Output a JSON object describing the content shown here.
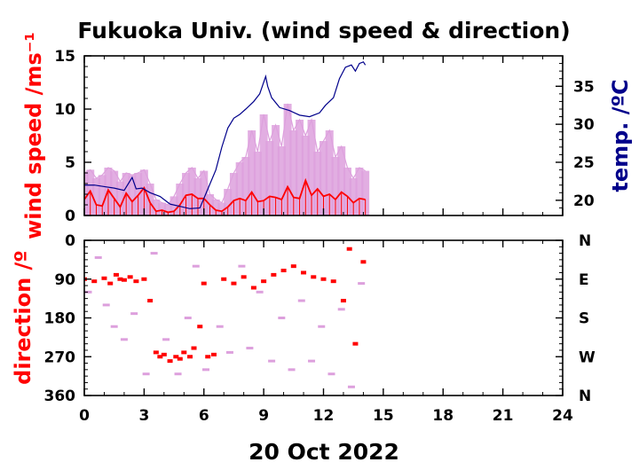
{
  "chart_data": [
    {
      "type": "line",
      "title": "Fukuoka Univ. (wind speed & direction)",
      "ylabel": "wind speed /ms⁻¹",
      "y2label": "temp. /ºC",
      "xlim": [
        0,
        24
      ],
      "ylim": [
        0,
        15
      ],
      "y2lim": [
        18,
        39
      ],
      "x_ticks": [
        "0",
        "3",
        "6",
        "9",
        "12",
        "15",
        "18",
        "21",
        "24"
      ],
      "y_ticks": [
        "0",
        "5",
        "10",
        "15"
      ],
      "y2_ticks": [
        "20",
        "25",
        "30",
        "35"
      ],
      "series": [
        {
          "color": "#ff0000",
          "role": "wind speed (mean)",
          "x": [
            0,
            0.3,
            0.6,
            0.9,
            1.2,
            1.5,
            1.8,
            2.1,
            2.4,
            2.7,
            3.0,
            3.3,
            3.6,
            3.9,
            4.2,
            4.5,
            4.8,
            5.1,
            5.4,
            5.7,
            6.0,
            6.3,
            6.6,
            6.9,
            7.2,
            7.5,
            7.8,
            8.1,
            8.4,
            8.7,
            9.0,
            9.3,
            9.6,
            9.9,
            10.2,
            10.5,
            10.8,
            11.1,
            11.4,
            11.7,
            12.0,
            12.3,
            12.6,
            12.9,
            13.2,
            13.5,
            13.8,
            14.1
          ],
          "values": [
            1.5,
            2.3,
            1.0,
            0.9,
            2.4,
            1.6,
            0.8,
            2.1,
            1.3,
            1.9,
            2.6,
            1.2,
            0.4,
            0.5,
            0.3,
            0.4,
            1.0,
            1.9,
            2.0,
            1.6,
            1.6,
            1.0,
            0.5,
            0.4,
            0.8,
            1.4,
            1.6,
            1.4,
            2.2,
            1.3,
            1.4,
            1.8,
            1.7,
            1.5,
            2.7,
            1.7,
            1.6,
            3.3,
            1.9,
            2.5,
            1.8,
            2.0,
            1.5,
            2.2,
            1.8,
            1.2,
            1.6,
            1.5
          ]
        },
        {
          "color": "#dda0dd",
          "role": "wind speed (gust)",
          "x": [
            0,
            0.3,
            0.6,
            0.9,
            1.2,
            1.5,
            1.8,
            2.1,
            2.4,
            2.7,
            3.0,
            3.3,
            3.6,
            3.9,
            4.2,
            4.5,
            4.8,
            5.1,
            5.4,
            5.7,
            6.0,
            6.3,
            6.6,
            6.9,
            7.2,
            7.5,
            7.8,
            8.1,
            8.4,
            8.7,
            9.0,
            9.3,
            9.6,
            9.9,
            10.2,
            10.5,
            10.8,
            11.1,
            11.4,
            11.7,
            12.0,
            12.3,
            12.6,
            12.9,
            13.2,
            13.5,
            13.8,
            14.1
          ],
          "values": [
            4.0,
            4.3,
            3.5,
            3.8,
            4.5,
            4.2,
            3.2,
            4.0,
            3.8,
            4.0,
            4.3,
            3.0,
            1.5,
            1.2,
            1.0,
            1.8,
            3.0,
            4.0,
            4.5,
            3.5,
            4.2,
            2.0,
            1.5,
            1.2,
            2.5,
            4.0,
            5.0,
            5.5,
            8.0,
            6.0,
            9.5,
            7.0,
            8.5,
            6.5,
            10.5,
            8.0,
            9.0,
            7.5,
            9.0,
            6.0,
            7.0,
            8.0,
            5.5,
            6.5,
            4.5,
            3.5,
            4.5,
            4.2
          ]
        },
        {
          "color": "#00008b",
          "role": "temperature",
          "x": [
            0,
            0.5,
            1.0,
            1.5,
            2.0,
            2.4,
            2.6,
            2.9,
            3.3,
            3.8,
            4.3,
            4.8,
            5.3,
            5.8,
            6.2,
            6.6,
            6.9,
            7.2,
            7.5,
            7.8,
            8.1,
            8.5,
            8.8,
            9.1,
            9.2,
            9.4,
            9.8,
            10.3,
            10.8,
            11.3,
            11.8,
            12.1,
            12.5,
            12.8,
            13.1,
            13.4,
            13.6,
            13.8,
            14.0,
            14.1
          ],
          "values": [
            22.0,
            22.0,
            21.8,
            21.6,
            21.3,
            23.0,
            21.5,
            21.6,
            21.0,
            20.5,
            19.5,
            19.2,
            18.9,
            19.0,
            21.5,
            24.0,
            27.0,
            29.5,
            30.8,
            31.3,
            32.0,
            33.0,
            34.0,
            36.3,
            35.0,
            33.5,
            32.2,
            31.8,
            31.2,
            31.0,
            31.5,
            32.5,
            33.5,
            36.0,
            37.5,
            37.8,
            37.0,
            38.0,
            38.2,
            37.8
          ]
        }
      ]
    },
    {
      "type": "scatter",
      "ylabel": "direction /º",
      "xlabel": "20 Oct 2022",
      "xlim": [
        0,
        24
      ],
      "ylim": [
        0,
        360
      ],
      "y_reversed": true,
      "x_ticks": [
        "0",
        "3",
        "6",
        "9",
        "12",
        "15",
        "18",
        "21",
        "24"
      ],
      "y_ticks": [
        "0",
        "90",
        "180",
        "270",
        "360"
      ],
      "y2_ticks": [
        "N",
        "E",
        "S",
        "W",
        "N"
      ],
      "series": [
        {
          "color": "#ff0000",
          "role": "wind direction (mean)",
          "x": [
            0,
            0.5,
            1.0,
            1.3,
            1.6,
            1.8,
            2.0,
            2.3,
            2.6,
            3.0,
            3.3,
            3.6,
            3.8,
            4.0,
            4.3,
            4.6,
            4.8,
            5.0,
            5.3,
            5.5,
            5.8,
            6.0,
            6.2,
            6.5,
            7.0,
            7.5,
            8.0,
            8.5,
            9.0,
            9.5,
            10.0,
            10.5,
            11.0,
            11.5,
            12.0,
            12.5,
            13.0,
            13.3,
            13.6,
            14.0
          ],
          "values": [
            90,
            95,
            88,
            100,
            80,
            90,
            92,
            85,
            95,
            90,
            140,
            260,
            270,
            265,
            280,
            270,
            275,
            260,
            270,
            250,
            200,
            100,
            270,
            265,
            90,
            100,
            85,
            110,
            95,
            80,
            70,
            60,
            75,
            85,
            90,
            95,
            140,
            20,
            240,
            50
          ]
        },
        {
          "color": "#dda0dd",
          "role": "wind direction (gust)",
          "x": [
            0.2,
            0.7,
            1.1,
            1.5,
            2.0,
            2.5,
            3.1,
            3.5,
            4.1,
            4.7,
            5.2,
            5.6,
            6.1,
            6.8,
            7.3,
            7.9,
            8.3,
            8.8,
            9.4,
            9.9,
            10.4,
            10.9,
            11.4,
            11.9,
            12.4,
            12.9,
            13.4,
            13.9
          ],
          "values": [
            120,
            40,
            150,
            200,
            230,
            170,
            310,
            30,
            230,
            310,
            180,
            60,
            300,
            200,
            260,
            60,
            250,
            120,
            280,
            180,
            300,
            140,
            280,
            200,
            310,
            160,
            340,
            100
          ]
        }
      ]
    }
  ]
}
